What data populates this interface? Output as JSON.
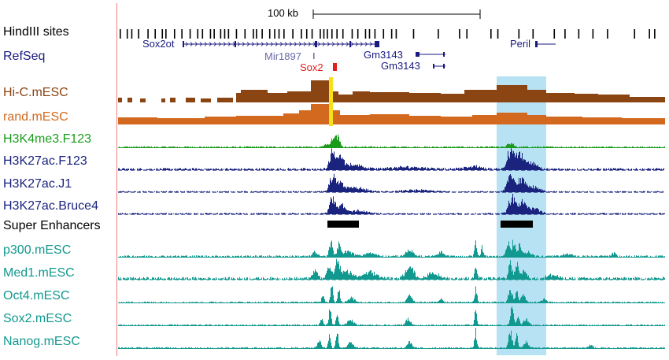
{
  "scale_bar": {
    "label": "100 kb"
  },
  "tracks": [
    {
      "id": "hindiii",
      "label": "HindIII sites",
      "color": "#000000"
    },
    {
      "id": "refseq",
      "label": "RefSeq",
      "color": "#1a1a80"
    },
    {
      "id": "hic",
      "label": "Hi-C.mESC",
      "color": "#8b4513"
    },
    {
      "id": "rand",
      "label": "rand.mESC",
      "color": "#d2691e"
    },
    {
      "id": "h3k4me3",
      "label": "H3K4me3.F123",
      "color": "#1a9c1a"
    },
    {
      "id": "h3k27ac_f123",
      "label": "H3K27ac.F123",
      "color": "#1a237e"
    },
    {
      "id": "h3k27ac_j1",
      "label": "H3K27ac.J1",
      "color": "#1a237e"
    },
    {
      "id": "h3k27ac_bruce4",
      "label": "H3K27ac.Bruce4",
      "color": "#1a237e"
    },
    {
      "id": "super_enhancers",
      "label": "Super Enhancers",
      "color": "#000000"
    },
    {
      "id": "p300",
      "label": "p300.mESC",
      "color": "#12998f"
    },
    {
      "id": "med1",
      "label": "Med1.mESC",
      "color": "#12998f"
    },
    {
      "id": "oct4",
      "label": "Oct4.mESC",
      "color": "#12998f"
    },
    {
      "id": "sox2",
      "label": "Sox2.mESC",
      "color": "#12998f"
    },
    {
      "id": "nanog",
      "label": "Nanog.mESC",
      "color": "#12998f"
    }
  ],
  "genes": [
    {
      "name": "Sox2ot",
      "color": "#1a1a80"
    },
    {
      "name": "Mir1897",
      "color": "#6a6aa8"
    },
    {
      "name": "Sox2",
      "color": "#e02020"
    },
    {
      "name": "Gm3143",
      "color": "#1a1a80"
    },
    {
      "name": "Gm3143",
      "color": "#1a1a80"
    },
    {
      "name": "Peril",
      "color": "#1a1a80"
    }
  ],
  "highlight_color": "#87ceeb",
  "sox2_marker_color": "#f5e11a"
}
